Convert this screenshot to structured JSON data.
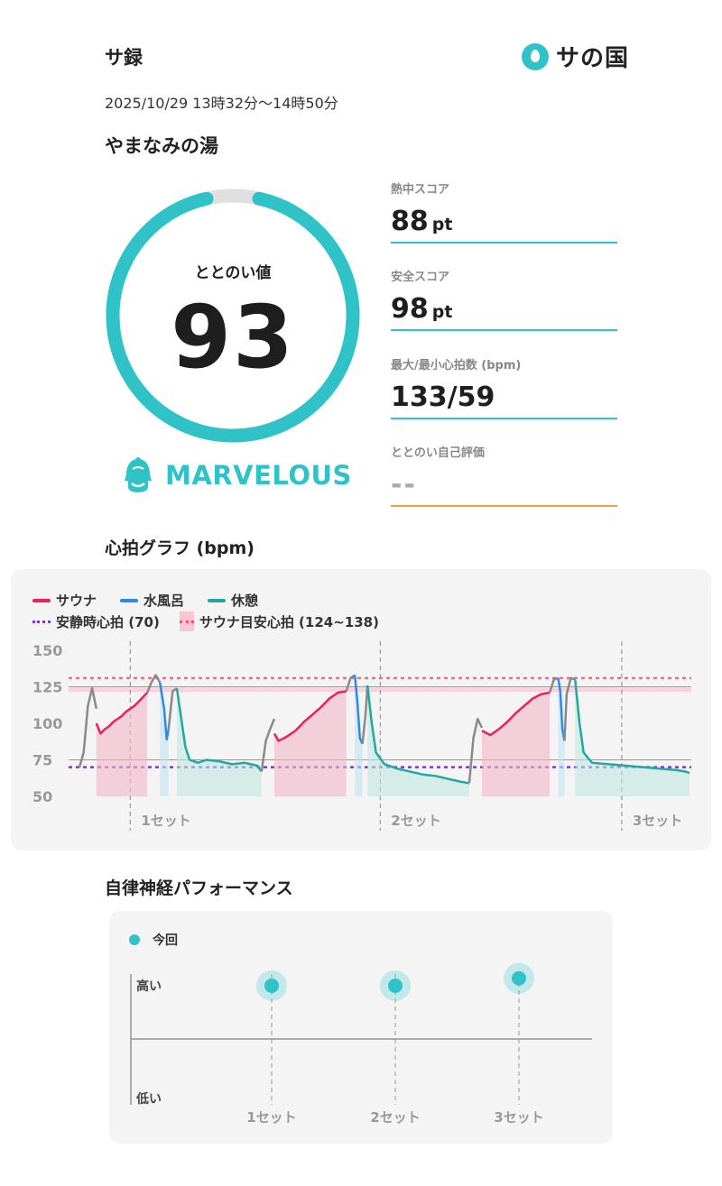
{
  "header": {
    "app_title": "サ録",
    "logo_text": "サの国",
    "datetime": "2025/10/29 13時32分〜14時50分",
    "facility": "やまなみの湯"
  },
  "score": {
    "label": "ととのい値",
    "value": "93",
    "progress": 0.93,
    "rank": "MARVELOUS",
    "accent_color": "#2fc3c8",
    "track_color": "#e0e0e0"
  },
  "metrics": [
    {
      "label": "熱中スコア",
      "value": "88",
      "unit": "pt"
    },
    {
      "label": "安全スコア",
      "value": "98",
      "unit": "pt"
    },
    {
      "label": "最大/最小心拍数 (bpm)",
      "value": "133/59",
      "unit": ""
    },
    {
      "label": "ととのい自己評価",
      "value": "--",
      "unit": ""
    }
  ],
  "heart_chart_title": "心拍グラフ (bpm)",
  "chart_data": {
    "type": "line",
    "legend": [
      {
        "name": "サウナ",
        "color": "#ee1f5c",
        "kind": "line"
      },
      {
        "name": "水風呂",
        "color": "#2b8be6",
        "kind": "line"
      },
      {
        "name": "休憩",
        "color": "#22a8a0",
        "kind": "line"
      },
      {
        "name": "安静時心拍 (70)",
        "color": "#8a2be2",
        "kind": "dotted"
      },
      {
        "name": "サウナ目安心拍 (124~138)",
        "color": "#ff4d7a",
        "kind": "band"
      }
    ],
    "yticks": [
      150,
      125,
      100,
      75,
      50
    ],
    "ylim": [
      50,
      155
    ],
    "xlim": [
      0,
      78
    ],
    "resting_hr": 70,
    "target_band": [
      124,
      138
    ],
    "target_line": 131,
    "ref_lines": [
      125,
      75
    ],
    "set_labels": [
      "1セット",
      "2セット",
      "3セット"
    ],
    "set_starts": [
      2,
      24,
      47
    ],
    "segments": [
      {
        "phase": "transition",
        "points": [
          [
            0,
            70
          ],
          [
            1,
            80
          ],
          [
            2,
            112
          ],
          [
            3,
            124
          ],
          [
            4,
            110
          ]
        ]
      },
      {
        "phase": "sauna",
        "points": [
          [
            4,
            100
          ],
          [
            5,
            93
          ],
          [
            6,
            96
          ],
          [
            7,
            98
          ],
          [
            8,
            101
          ],
          [
            9,
            103
          ],
          [
            10,
            105
          ],
          [
            11,
            108
          ],
          [
            12,
            110
          ],
          [
            13,
            112
          ],
          [
            14,
            115
          ],
          [
            15,
            118
          ],
          [
            16,
            121
          ]
        ]
      },
      {
        "phase": "transition",
        "points": [
          [
            16,
            121
          ],
          [
            17,
            128
          ],
          [
            18,
            133
          ],
          [
            19,
            128
          ]
        ]
      },
      {
        "phase": "cold",
        "points": [
          [
            19,
            128
          ],
          [
            20,
            110
          ],
          [
            20.6,
            89
          ],
          [
            21,
            95
          ]
        ]
      },
      {
        "phase": "transition",
        "points": [
          [
            21,
            95
          ],
          [
            22,
            122
          ],
          [
            23,
            124
          ]
        ]
      },
      {
        "phase": "rest",
        "points": [
          [
            23,
            124
          ],
          [
            24,
            104
          ],
          [
            25,
            84
          ],
          [
            26,
            75
          ],
          [
            28,
            73
          ],
          [
            30,
            75
          ],
          [
            33,
            74
          ],
          [
            36,
            72
          ],
          [
            39,
            73
          ],
          [
            42,
            71
          ],
          [
            43,
            67
          ]
        ]
      },
      {
        "phase": "transition",
        "points": [
          [
            43,
            67
          ],
          [
            44,
            88
          ],
          [
            45,
            96
          ],
          [
            46,
            103
          ]
        ]
      },
      {
        "phase": "sauna",
        "points": [
          [
            46,
            93
          ],
          [
            47,
            88
          ],
          [
            49,
            91
          ],
          [
            51,
            95
          ],
          [
            53,
            101
          ],
          [
            55,
            106
          ],
          [
            57,
            111
          ],
          [
            59,
            117
          ],
          [
            61,
            121
          ],
          [
            63,
            122
          ]
        ]
      },
      {
        "phase": "transition",
        "points": [
          [
            63,
            122
          ],
          [
            64,
            131
          ],
          [
            65,
            133
          ]
        ]
      },
      {
        "phase": "cold",
        "points": [
          [
            65,
            133
          ],
          [
            65.6,
            115
          ],
          [
            66.2,
            90
          ],
          [
            66.8,
            86
          ]
        ]
      },
      {
        "phase": "transition",
        "points": [
          [
            66.8,
            86
          ],
          [
            67.5,
            105
          ],
          [
            68,
            126
          ]
        ]
      },
      {
        "phase": "rest",
        "points": [
          [
            68,
            126
          ],
          [
            69,
            100
          ],
          [
            70,
            80
          ],
          [
            72,
            72
          ],
          [
            75,
            69
          ],
          [
            78,
            67
          ],
          [
            81,
            65
          ],
          [
            84,
            64
          ],
          [
            87,
            62
          ],
          [
            90,
            60
          ],
          [
            92,
            59
          ]
        ]
      },
      {
        "phase": "transition",
        "points": [
          [
            92,
            59
          ],
          [
            93,
            90
          ],
          [
            94,
            103
          ],
          [
            95,
            97
          ]
        ]
      },
      {
        "phase": "sauna",
        "points": [
          [
            95,
            95
          ],
          [
            97,
            92
          ],
          [
            99,
            96
          ],
          [
            101,
            101
          ],
          [
            103,
            107
          ],
          [
            105,
            112
          ],
          [
            107,
            117
          ],
          [
            109,
            120
          ],
          [
            111,
            121
          ]
        ]
      },
      {
        "phase": "transition",
        "points": [
          [
            111,
            121
          ],
          [
            112,
            130
          ],
          [
            113,
            131
          ]
        ]
      },
      {
        "phase": "cold",
        "points": [
          [
            113,
            131
          ],
          [
            113.5,
            122
          ],
          [
            114,
            96
          ],
          [
            114.5,
            88
          ]
        ]
      },
      {
        "phase": "transition",
        "points": [
          [
            114.5,
            88
          ],
          [
            115,
            120
          ],
          [
            116,
            131
          ],
          [
            117,
            130
          ]
        ]
      },
      {
        "phase": "rest",
        "points": [
          [
            117,
            130
          ],
          [
            118,
            101
          ],
          [
            119,
            80
          ],
          [
            121,
            73
          ],
          [
            125,
            72
          ],
          [
            129,
            71
          ],
          [
            133,
            70
          ],
          [
            137,
            69
          ],
          [
            141,
            68
          ],
          [
            143,
            67
          ],
          [
            144,
            66
          ]
        ]
      }
    ]
  },
  "ans": {
    "title": "自律神経パフォーマンス",
    "legend_label": "今回",
    "y_high": "高い",
    "y_low": "低い",
    "sets": [
      "1セット",
      "2セット",
      "3セット"
    ],
    "values": [
      0.72,
      0.72,
      0.82
    ]
  }
}
